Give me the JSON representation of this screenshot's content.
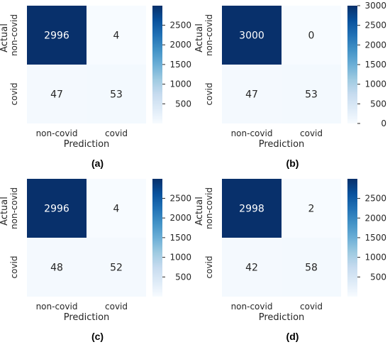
{
  "chart_data": [
    {
      "type": "heatmap",
      "caption": "(a)",
      "xlabel": "Prediction",
      "ylabel": "Actual",
      "x_categories": [
        "non-covid",
        "covid"
      ],
      "y_categories": [
        "non-covid",
        "covid"
      ],
      "values": [
        [
          2996,
          4
        ],
        [
          47,
          53
        ]
      ],
      "colorbar": {
        "min": 0,
        "max": 2996,
        "ticks": [
          500,
          1000,
          1500,
          2000,
          2500
        ]
      },
      "colormap": [
        "#f7fbff",
        "#08306b"
      ]
    },
    {
      "type": "heatmap",
      "caption": "(b)",
      "xlabel": "Prediction",
      "ylabel": "Actual",
      "x_categories": [
        "non-covid",
        "covid"
      ],
      "y_categories": [
        "non-covid",
        "covid"
      ],
      "values": [
        [
          3000,
          0
        ],
        [
          47,
          53
        ]
      ],
      "colorbar": {
        "min": 0,
        "max": 3000,
        "ticks": [
          0,
          500,
          1000,
          1500,
          2000,
          2500,
          3000
        ]
      },
      "colormap": [
        "#f7fbff",
        "#08306b"
      ]
    },
    {
      "type": "heatmap",
      "caption": "(c)",
      "xlabel": "Prediction",
      "ylabel": "Actual",
      "x_categories": [
        "non-covid",
        "covid"
      ],
      "y_categories": [
        "non-covid",
        "covid"
      ],
      "values": [
        [
          2996,
          4
        ],
        [
          48,
          52
        ]
      ],
      "colorbar": {
        "min": 0,
        "max": 2996,
        "ticks": [
          500,
          1000,
          1500,
          2000,
          2500
        ]
      },
      "colormap": [
        "#f7fbff",
        "#08306b"
      ]
    },
    {
      "type": "heatmap",
      "caption": "(d)",
      "xlabel": "Prediction",
      "ylabel": "Actual",
      "x_categories": [
        "non-covid",
        "covid"
      ],
      "y_categories": [
        "non-covid",
        "covid"
      ],
      "values": [
        [
          2998,
          2
        ],
        [
          42,
          58
        ]
      ],
      "colorbar": {
        "min": 0,
        "max": 2998,
        "ticks": [
          500,
          1000,
          1500,
          2000,
          2500
        ]
      },
      "colormap": [
        "#f7fbff",
        "#08306b"
      ]
    }
  ]
}
